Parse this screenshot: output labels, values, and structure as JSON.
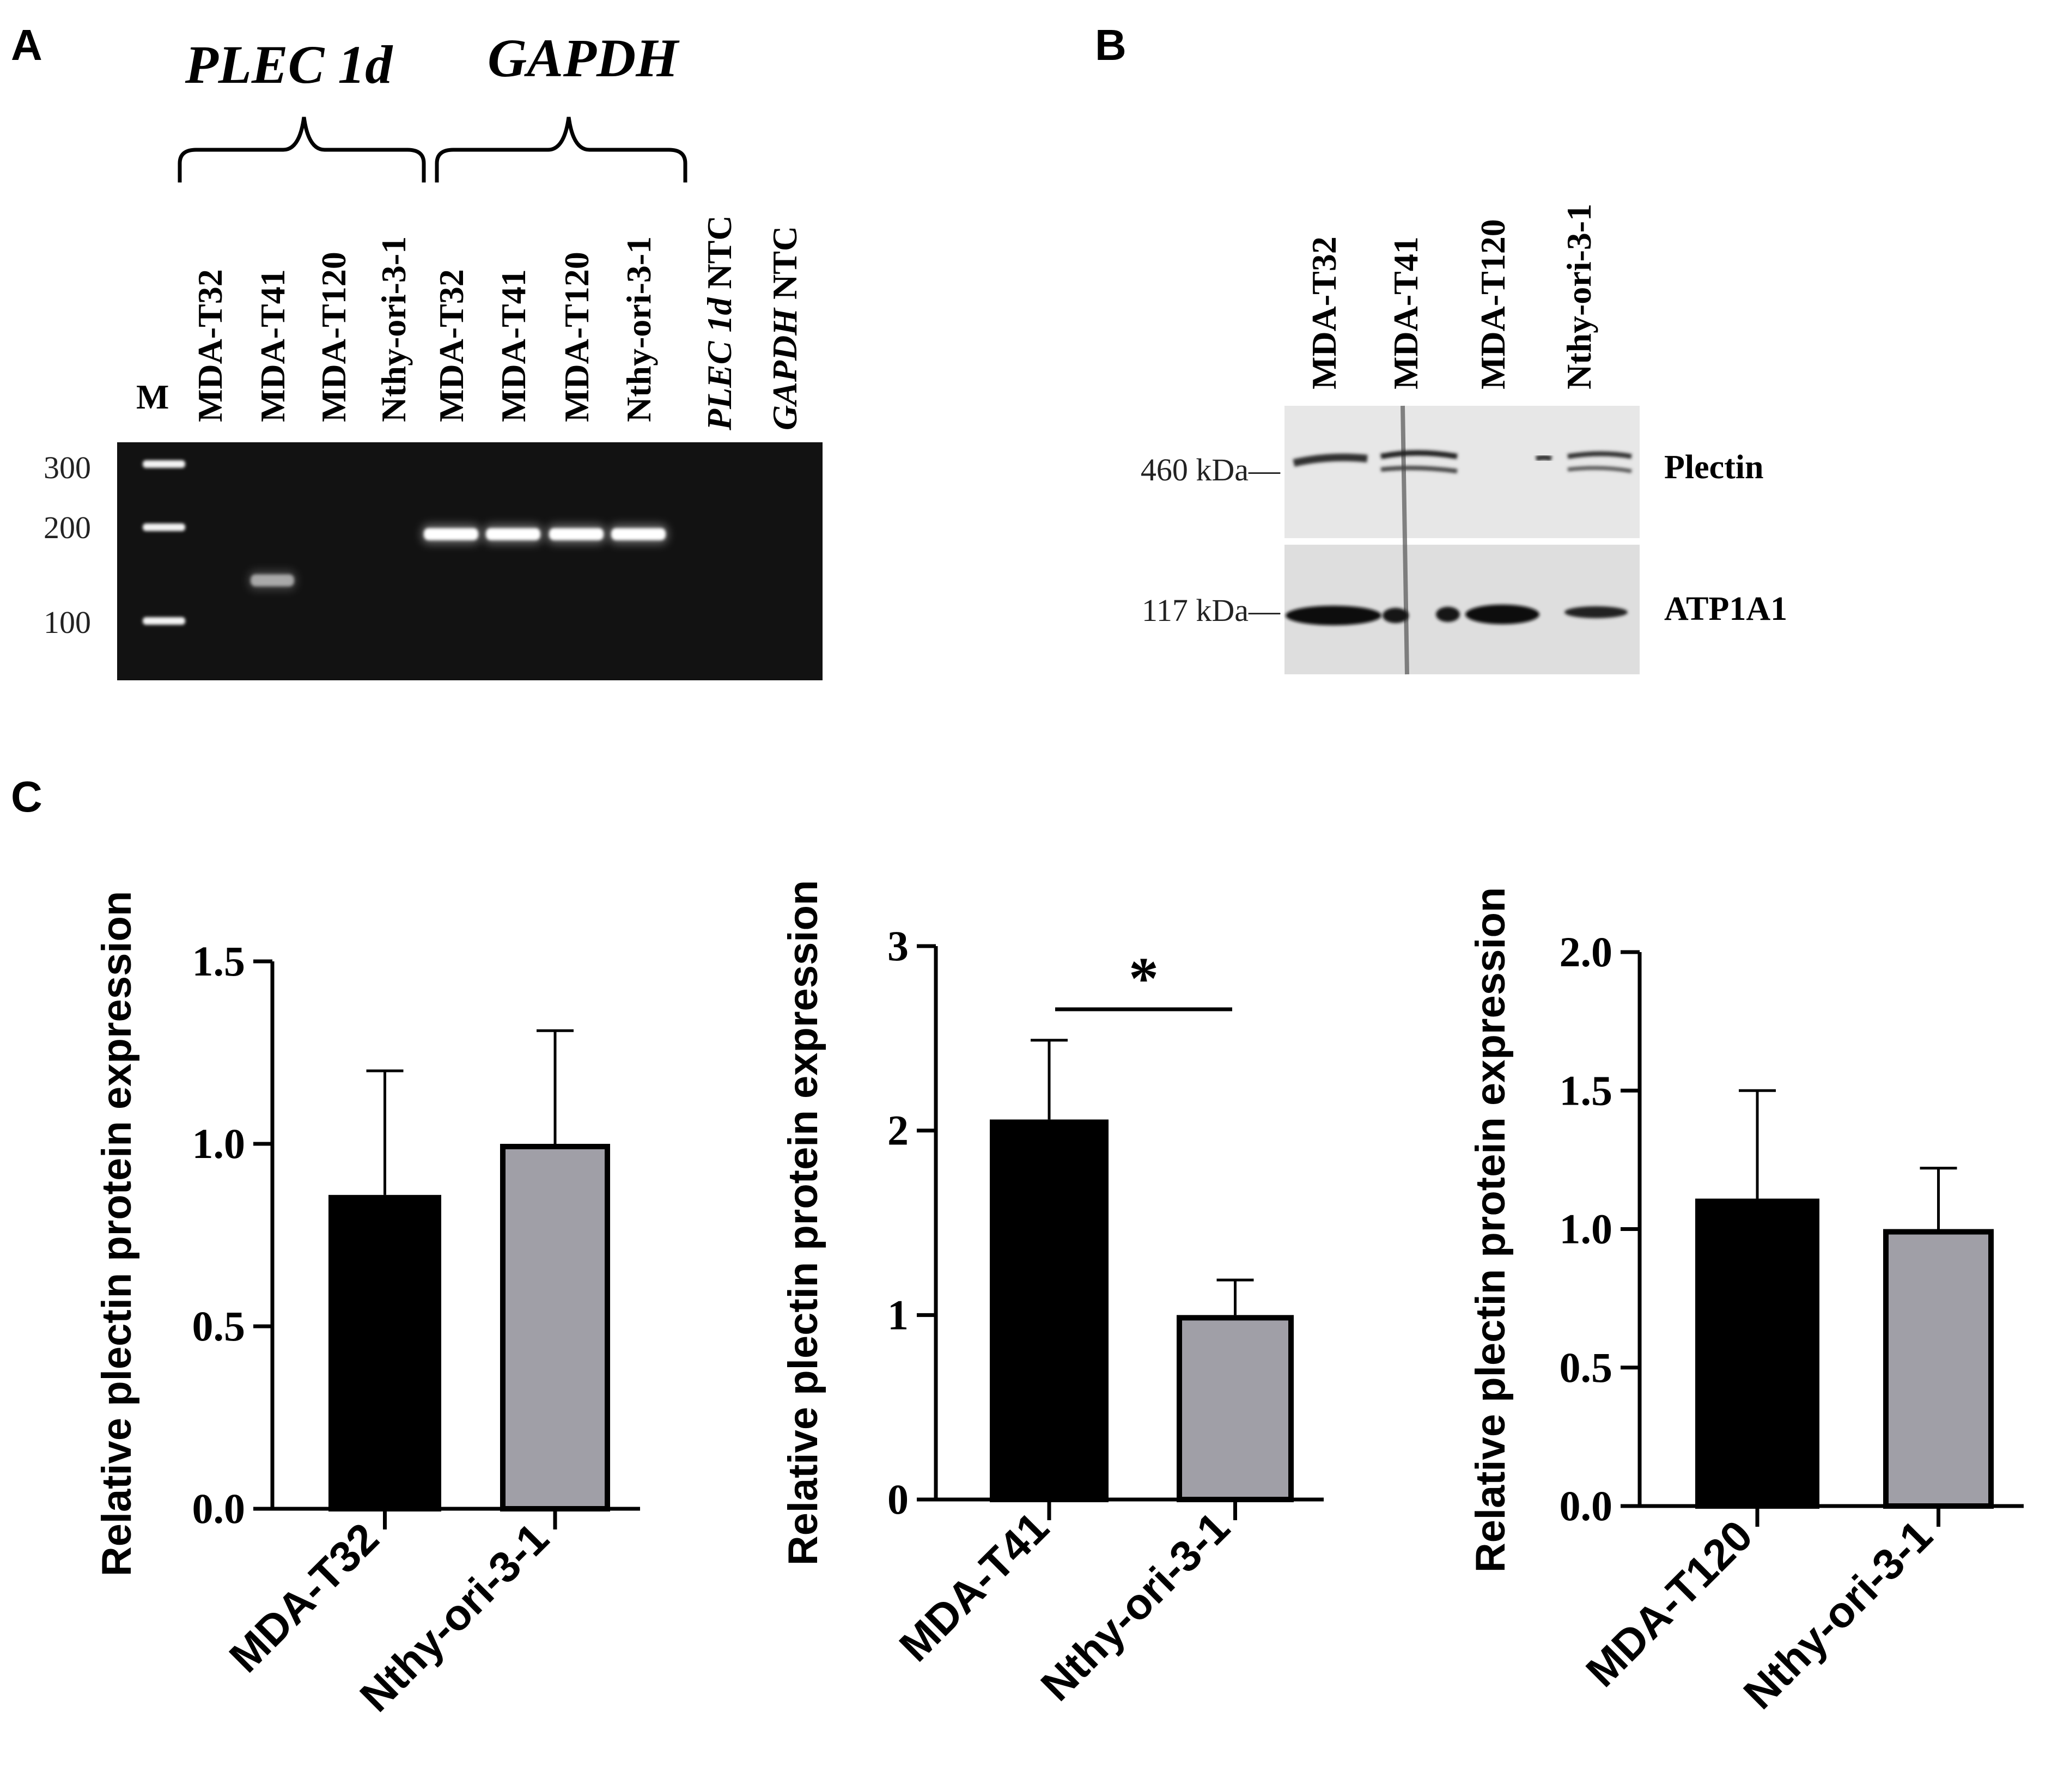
{
  "panels": {
    "a": "A",
    "b": "B",
    "c": "C"
  },
  "gel": {
    "gene_plec": "PLEC 1d",
    "gene_gapdh": "GAPDH",
    "marker_lane": "M",
    "lanes": [
      "MDA-T32",
      "MDA-T41",
      "MDA-T120",
      "Nthy-ori-3-1",
      "MDA-T32",
      "MDA-T41",
      "MDA-T120",
      "Nthy-ori-3-1"
    ],
    "ntc_plec_gene": "PLEC 1d",
    "ntc_gapdh_gene": "GAPDH",
    "ntc_suffix": "NTC",
    "markers": [
      {
        "label": "300",
        "bp": 300
      },
      {
        "label": "200",
        "bp": 200
      },
      {
        "label": "100",
        "bp": 100
      }
    ],
    "bands": [
      {
        "lane": 2,
        "bp": 135,
        "intensity": 0.55
      },
      {
        "lane": 5,
        "bp": 190,
        "intensity": 1.0
      },
      {
        "lane": 6,
        "bp": 190,
        "intensity": 1.0
      },
      {
        "lane": 7,
        "bp": 190,
        "intensity": 1.0
      },
      {
        "lane": 8,
        "bp": 190,
        "intensity": 1.0
      }
    ]
  },
  "blot": {
    "lanes": [
      "MDA-T32",
      "MDA-T41",
      "MDA-T120",
      "Nthy-ori-3-1"
    ],
    "plectin": {
      "label": "Plectin",
      "kda": "460 kDa—"
    },
    "atp1a1": {
      "label": "ATP1A1",
      "kda": "117 kDa—"
    }
  },
  "chart_data": [
    {
      "type": "bar",
      "categories": [
        "MDA-T32",
        "Nthy-ori-3-1"
      ],
      "values": [
        0.86,
        1.0
      ],
      "errors": [
        0.34,
        0.31
      ],
      "colors": [
        "#000000",
        "#a09fa7"
      ],
      "ylabel": "Relative plectin protein expression",
      "ylim": [
        0,
        1.5
      ],
      "yticks": [
        "0.0",
        "0.5",
        "1.0",
        "1.5"
      ],
      "significance": ""
    },
    {
      "type": "bar",
      "categories": [
        "MDA-T41",
        "Nthy-ori-3-1"
      ],
      "values": [
        2.06,
        1.0
      ],
      "errors": [
        0.43,
        0.19
      ],
      "colors": [
        "#000000",
        "#a09fa7"
      ],
      "ylabel": "Relative plectin protein expression",
      "ylim": [
        0,
        3
      ],
      "yticks": [
        "0",
        "1",
        "2",
        "3"
      ],
      "significance": "*"
    },
    {
      "type": "bar",
      "categories": [
        "MDA-T120",
        "Nthy-ori-3-1"
      ],
      "values": [
        1.11,
        1.0
      ],
      "errors": [
        0.39,
        0.22
      ],
      "colors": [
        "#000000",
        "#a09fa7"
      ],
      "ylabel": "Relative plectin protein expression",
      "ylim": [
        0,
        2.0
      ],
      "yticks": [
        "0.0",
        "0.5",
        "1.0",
        "1.5",
        "2.0"
      ],
      "significance": ""
    }
  ]
}
